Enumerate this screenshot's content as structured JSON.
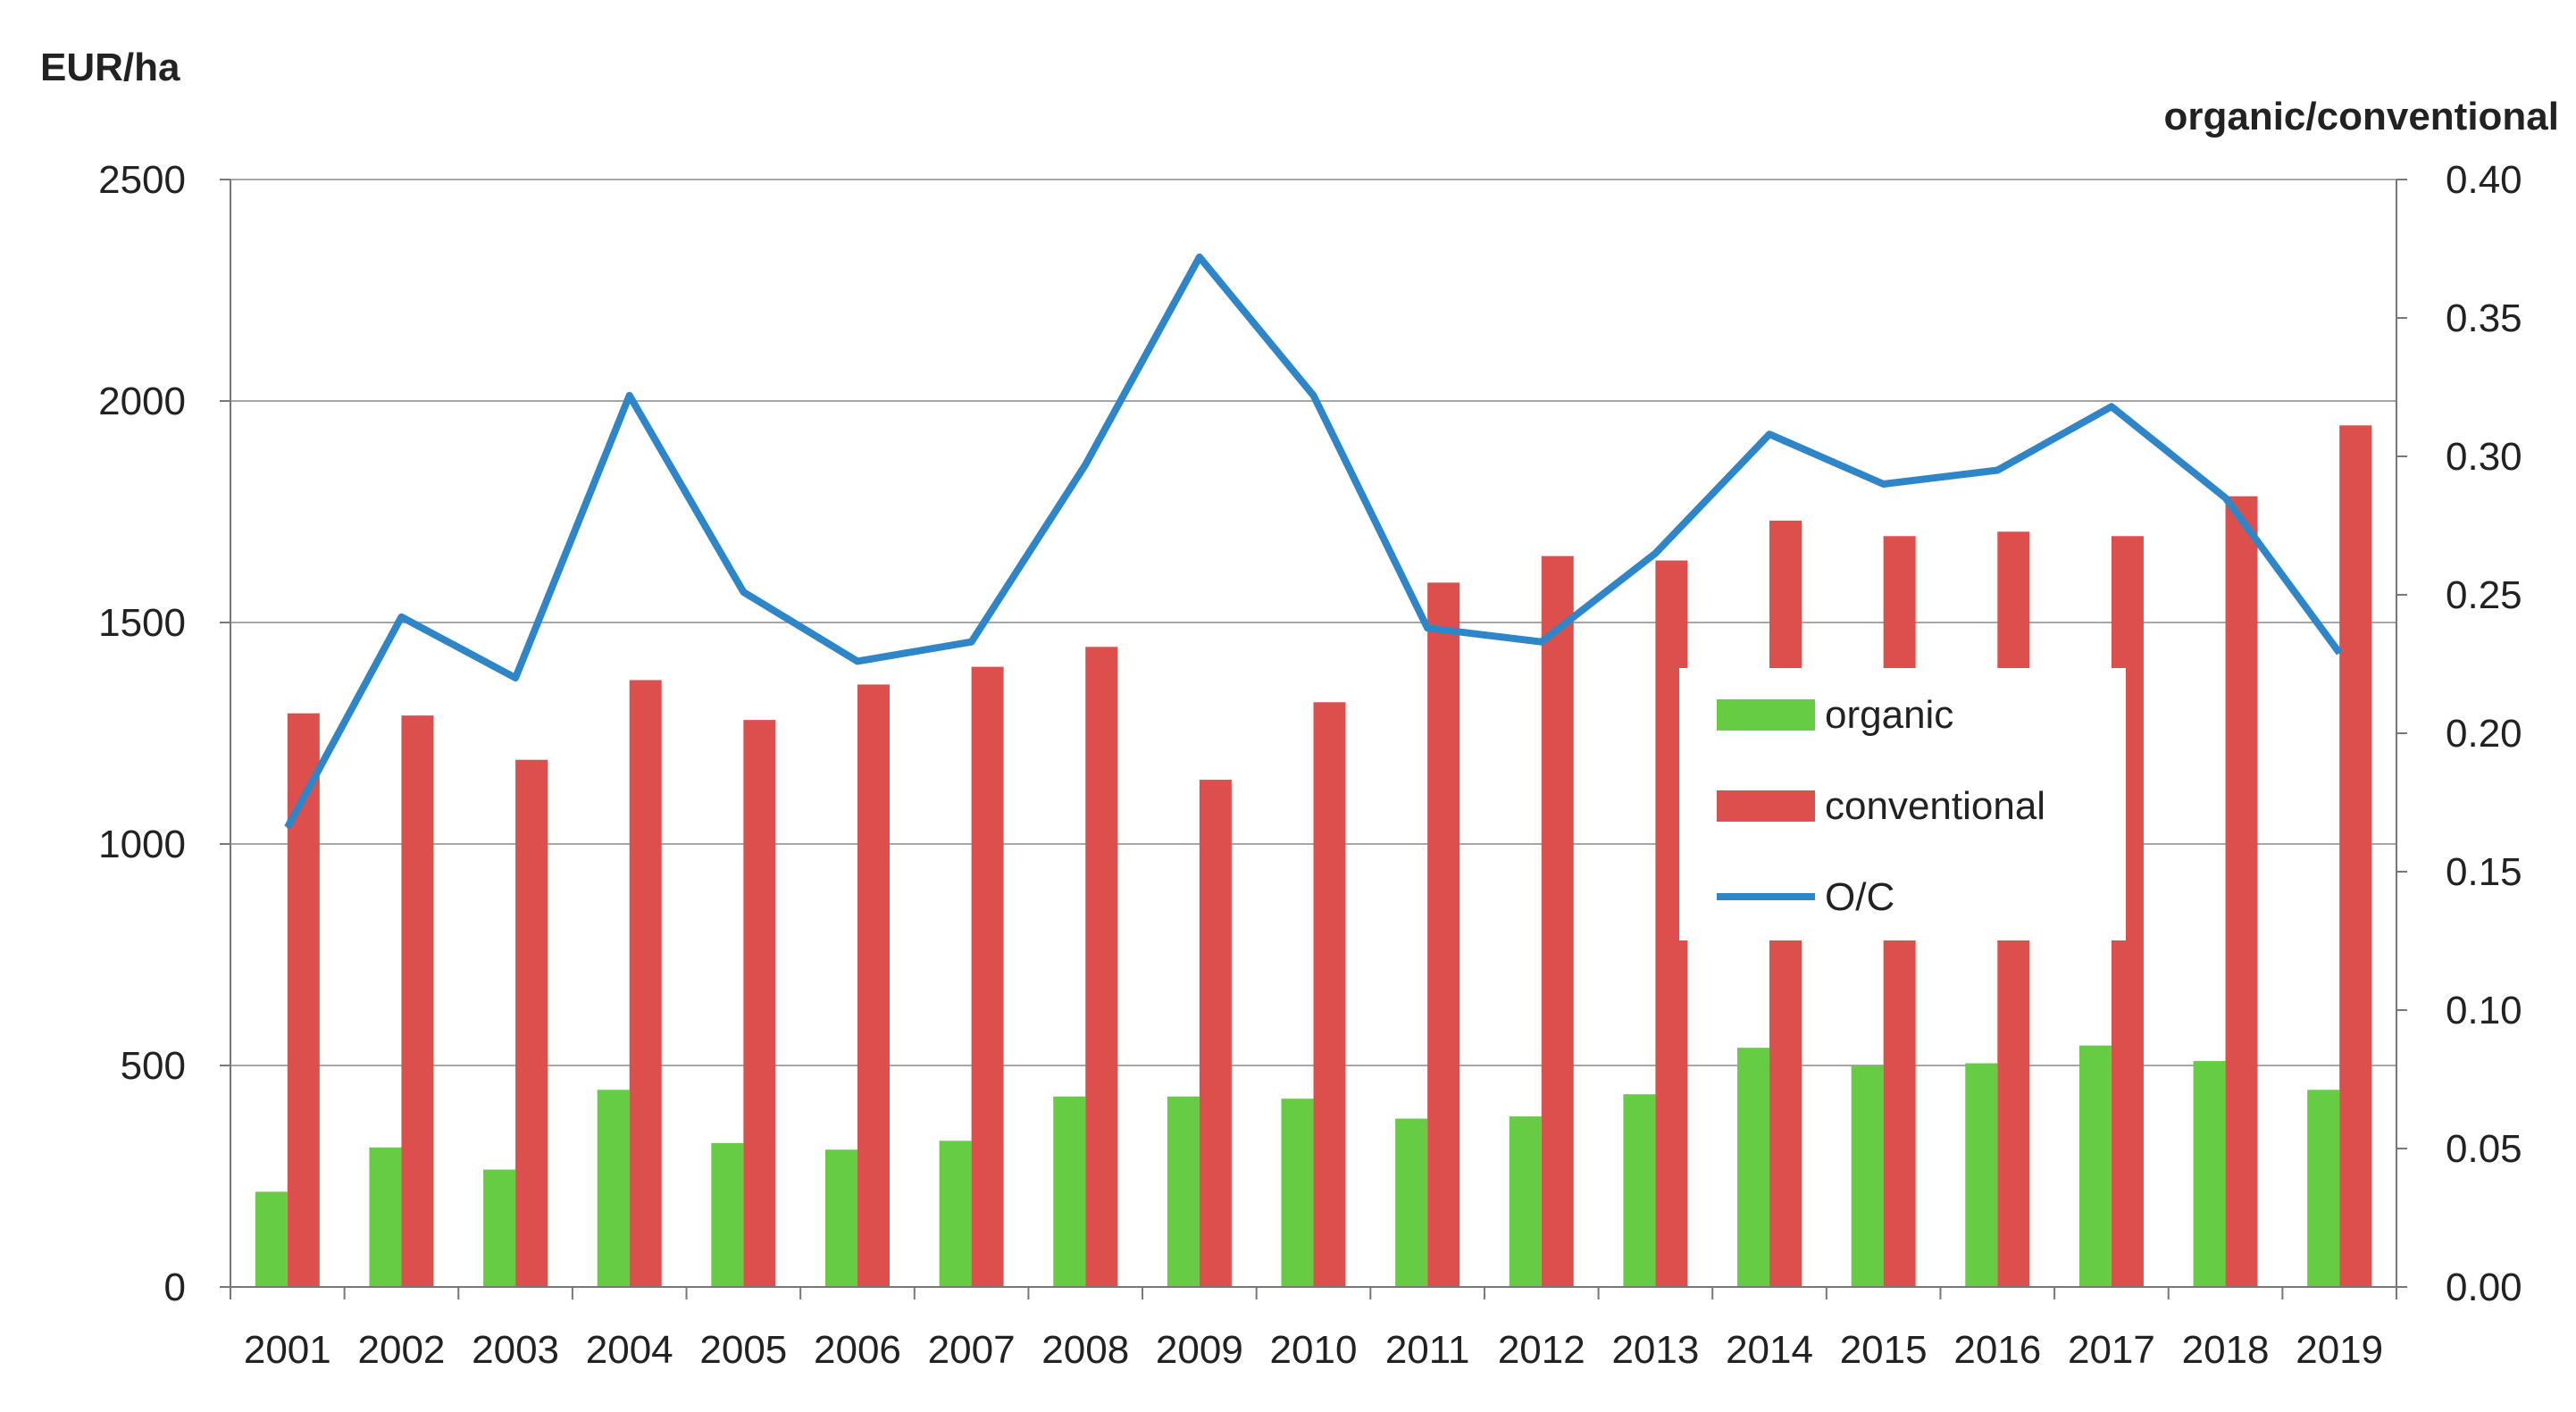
{
  "chart_data": {
    "type": "bar",
    "left_axis_label": "EUR/ha",
    "right_axis_label": "organic/conventional",
    "categories": [
      "2001",
      "2002",
      "2003",
      "2004",
      "2005",
      "2006",
      "2007",
      "2008",
      "2009",
      "2010",
      "2011",
      "2012",
      "2013",
      "2014",
      "2015",
      "2016",
      "2017",
      "2018",
      "2019"
    ],
    "y_left": {
      "min": 0,
      "max": 2500,
      "ticks": [
        "0",
        "500",
        "1000",
        "1500",
        "2000",
        "2500"
      ]
    },
    "y_right": {
      "min": 0,
      "max": 0.4,
      "ticks": [
        "0.00",
        "0.05",
        "0.10",
        "0.15",
        "0.20",
        "0.25",
        "0.30",
        "0.35",
        "0.40"
      ]
    },
    "series": [
      {
        "name": "organic",
        "axis": "left",
        "kind": "bar",
        "color": "#66CC44",
        "values": [
          215,
          315,
          265,
          445,
          325,
          310,
          330,
          430,
          430,
          425,
          380,
          385,
          435,
          540,
          500,
          505,
          545,
          510,
          445
        ]
      },
      {
        "name": "conventional",
        "axis": "left",
        "kind": "bar",
        "color": "#DD4F4C",
        "values": [
          1295,
          1290,
          1190,
          1370,
          1280,
          1360,
          1400,
          1445,
          1145,
          1320,
          1590,
          1650,
          1640,
          1730,
          1695,
          1705,
          1695,
          1785,
          1945
        ]
      },
      {
        "name": "O/C",
        "axis": "right",
        "kind": "line",
        "color": "#2E86C8",
        "values": [
          0.166,
          0.242,
          0.22,
          0.322,
          0.251,
          0.226,
          0.233,
          0.297,
          0.372,
          0.322,
          0.238,
          0.233,
          0.265,
          0.308,
          0.29,
          0.295,
          0.318,
          0.285,
          0.229
        ]
      }
    ],
    "legend": {
      "position": "center-right",
      "labels": [
        "organic",
        "conventional",
        "O/C"
      ]
    },
    "grid": "horizontal"
  }
}
